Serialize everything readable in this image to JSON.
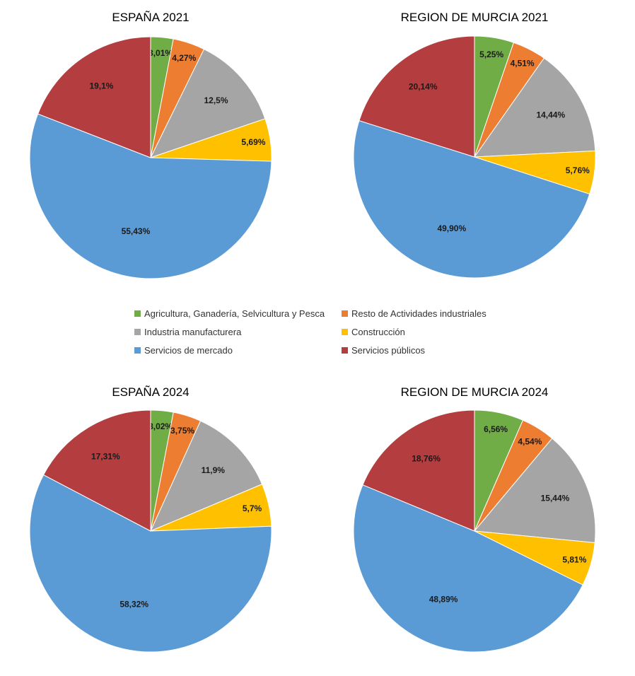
{
  "legend": [
    {
      "name": "Agricultura, Ganadería, Selvicultura y Pesca",
      "color": "#70ad47"
    },
    {
      "name": "Resto de Actividades industriales",
      "color": "#ed7d31"
    },
    {
      "name": "Industria manufacturera",
      "color": "#a5a5a5"
    },
    {
      "name": "Construcción",
      "color": "#ffc000"
    },
    {
      "name": "Servicios de mercado",
      "color": "#5b9bd5"
    },
    {
      "name": "Servicios públicos",
      "color": "#b33d3f"
    }
  ],
  "chart_data": [
    {
      "type": "pie",
      "title": "ESPAÑA 2021",
      "values": [
        3.01,
        4.27,
        12.5,
        5.69,
        55.43,
        19.1
      ],
      "labels": [
        "3,01%",
        "4,27%",
        "12,5%",
        "5,69%",
        "55,43%",
        "19,1%"
      ]
    },
    {
      "type": "pie",
      "title": "REGION DE MURCIA 2021",
      "values": [
        5.25,
        4.51,
        14.44,
        5.76,
        49.9,
        20.14
      ],
      "labels": [
        "5,25%",
        "4,51%",
        "14,44%",
        "5,76%",
        "49,90%",
        "20,14%"
      ]
    },
    {
      "type": "pie",
      "title": "ESPAÑA 2024",
      "values": [
        3.02,
        3.75,
        11.9,
        5.7,
        58.32,
        17.31
      ],
      "labels": [
        "3,02%",
        "3,75%",
        "11,9%",
        "5,7%",
        "58,32%",
        "17,31%"
      ]
    },
    {
      "type": "pie",
      "title": "REGION DE MURCIA 2024",
      "values": [
        6.56,
        4.54,
        15.44,
        5.81,
        48.89,
        18.76
      ],
      "labels": [
        "6,56%",
        "4,54%",
        "15,44%",
        "5,81%",
        "48,89%",
        "18,76%"
      ]
    }
  ]
}
